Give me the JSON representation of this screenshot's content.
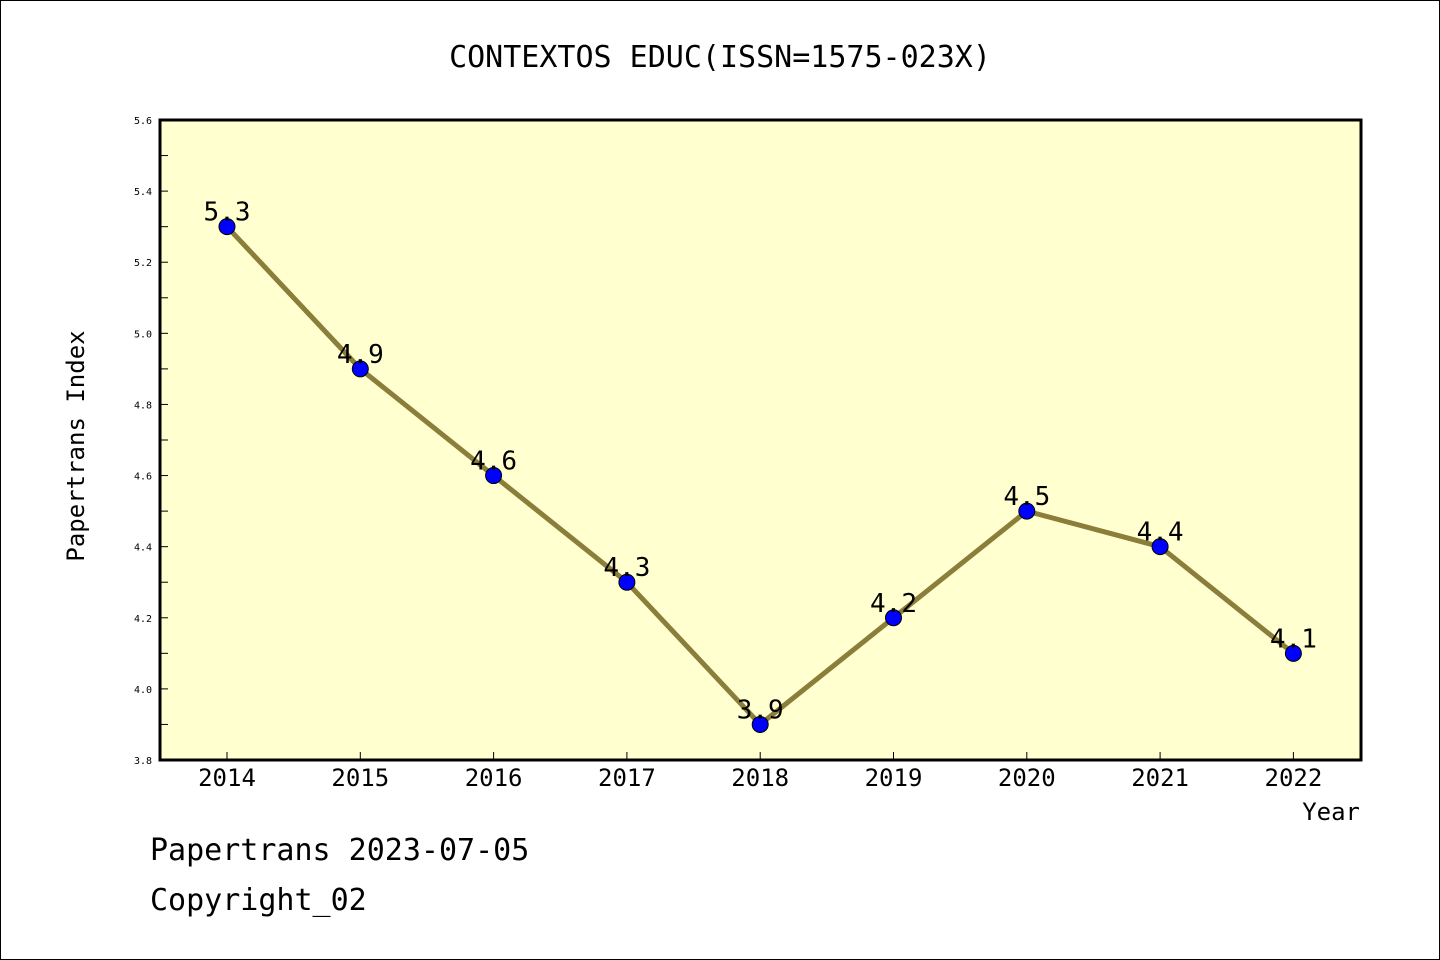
{
  "chart_data": {
    "type": "line",
    "title": "CONTEXTOS EDUC(ISSN=1575-023X)",
    "xlabel": "Year",
    "ylabel": "Papertrans Index",
    "x": [
      "2014",
      "2015",
      "2016",
      "2017",
      "2018",
      "2019",
      "2020",
      "2021",
      "2022"
    ],
    "series": [
      {
        "values": [
          5.3,
          4.9,
          4.6,
          4.3,
          3.9,
          4.2,
          4.5,
          4.4,
          4.1
        ]
      }
    ],
    "data_labels": [
      "5.3",
      "4.9",
      "4.6",
      "4.3",
      "3.9",
      "4.2",
      "4.5",
      "4.4",
      "4.1"
    ],
    "ylim": [
      3.8,
      5.6
    ],
    "yticks": [
      "3.8",
      "4.0",
      "4.2",
      "4.4",
      "4.6",
      "4.8",
      "5.0",
      "5.2",
      "5.4",
      "5.6"
    ],
    "grid": false,
    "colors": {
      "plot_background": "#ffffd0",
      "line": "#8b7d3a",
      "marker": "#0000ff"
    }
  },
  "footer": {
    "line1": "Papertrans 2023-07-05",
    "line2": "Copyright_02"
  }
}
